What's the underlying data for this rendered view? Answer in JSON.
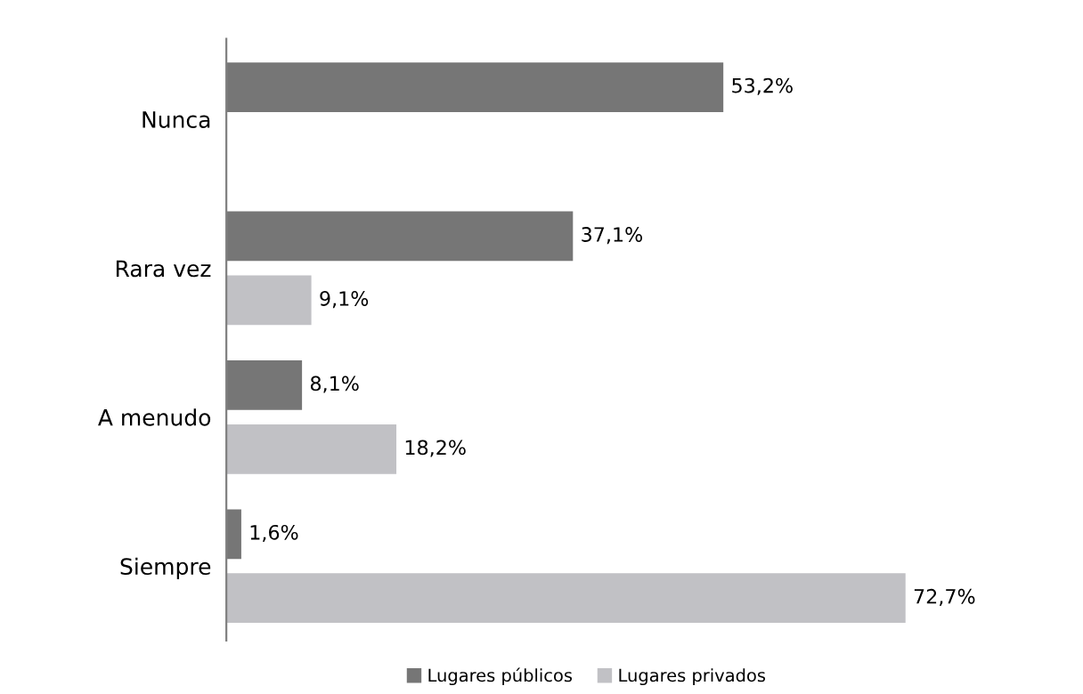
{
  "chart_data": {
    "type": "bar",
    "orientation": "horizontal",
    "categories": [
      "Nunca",
      "Rara vez",
      "A menudo",
      "Siempre"
    ],
    "series": [
      {
        "name": "Lugares públicos",
        "color": "#767676",
        "values": [
          53.2,
          37.1,
          8.1,
          1.6
        ],
        "value_labels": [
          "53,2%",
          "37,1%",
          "8,1%",
          "1,6%"
        ]
      },
      {
        "name": "Lugares privados",
        "color": "#c1c1c5",
        "values": [
          null,
          9.1,
          18.2,
          72.7
        ],
        "value_labels": [
          null,
          "9,1%",
          "18,2%",
          "72,7%"
        ]
      }
    ],
    "legend": "bottom",
    "grid": false
  }
}
